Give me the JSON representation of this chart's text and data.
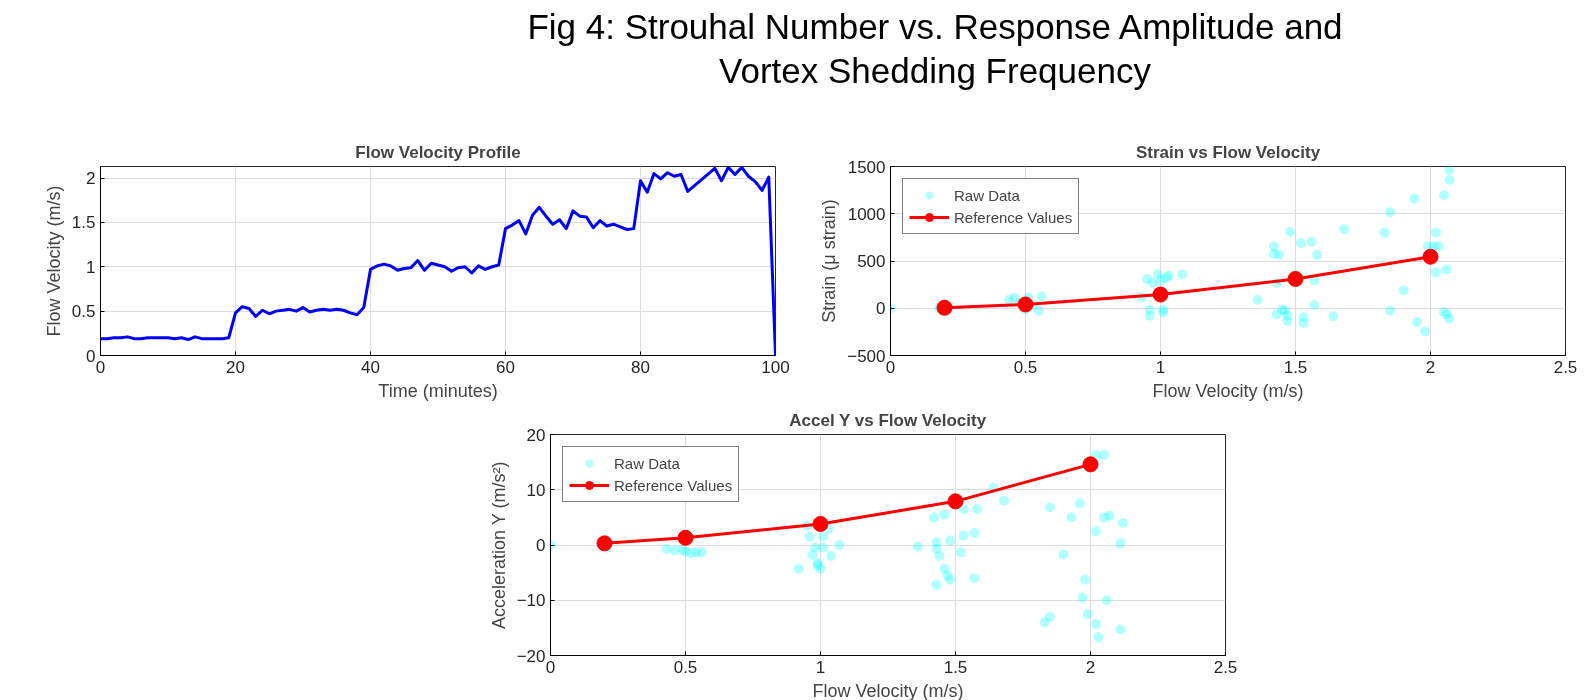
{
  "chart_data": [
    {
      "type": "other",
      "title": "Fig 4: Strouhal Number vs. Response Amplitude and Vortex Shedding Frequency"
    },
    {
      "type": "line",
      "title": "Flow Velocity Profile",
      "xlabel": "Time (minutes)",
      "ylabel": "Flow Velocity (m/s)",
      "xlim": [
        0,
        100
      ],
      "ylim": [
        0,
        2.13
      ],
      "xticks": [
        0,
        20,
        40,
        60,
        80,
        100
      ],
      "yticks": [
        0,
        0.5,
        1,
        1.5,
        2
      ],
      "grid": true,
      "legend": false,
      "line_style": "solid",
      "series": [
        {
          "color": "#0000ff",
          "x": [
            0,
            1,
            2,
            3,
            4,
            5,
            6,
            7,
            8,
            9,
            10,
            11,
            12,
            13,
            14,
            15,
            16,
            17,
            18,
            19,
            20,
            21,
            22,
            23,
            24,
            25,
            26,
            27,
            28,
            29,
            30,
            31,
            32,
            33,
            34,
            35,
            36,
            37,
            38,
            39,
            40,
            41,
            42,
            43,
            44,
            45,
            46,
            47,
            48,
            49,
            50,
            51,
            52,
            53,
            54,
            55,
            56,
            57,
            58,
            59,
            60,
            61,
            62,
            63,
            64,
            65,
            66,
            67,
            68,
            69,
            70,
            71,
            72,
            73,
            74,
            75,
            76,
            77,
            78,
            79,
            80,
            81,
            82,
            83,
            84,
            85,
            86,
            87,
            91,
            92,
            93,
            94,
            95,
            96,
            97,
            98,
            99,
            100
          ],
          "values": [
            0.19,
            0.19,
            0.2,
            0.2,
            0.21,
            0.19,
            0.19,
            0.2,
            0.2,
            0.2,
            0.2,
            0.19,
            0.2,
            0.18,
            0.21,
            0.19,
            0.19,
            0.19,
            0.19,
            0.2,
            0.48,
            0.55,
            0.53,
            0.44,
            0.51,
            0.47,
            0.5,
            0.51,
            0.52,
            0.5,
            0.54,
            0.49,
            0.51,
            0.52,
            0.51,
            0.52,
            0.51,
            0.48,
            0.46,
            0.54,
            0.97,
            1.01,
            1.03,
            1.01,
            0.96,
            0.98,
            0.99,
            1.07,
            0.96,
            1.04,
            1.02,
            1.0,
            0.95,
            0.99,
            1.0,
            0.93,
            1.01,
            0.97,
            1.0,
            1.02,
            1.43,
            1.47,
            1.52,
            1.37,
            1.58,
            1.67,
            1.57,
            1.48,
            1.53,
            1.43,
            1.63,
            1.57,
            1.56,
            1.44,
            1.52,
            1.46,
            1.48,
            1.45,
            1.42,
            1.43,
            1.97,
            1.84,
            2.05,
            1.99,
            2.06,
            2.02,
            2.04,
            1.85,
            2.11,
            1.97,
            2.12,
            2.04,
            2.12,
            2.02,
            1.96,
            1.86,
            2.01,
            0.0
          ]
        }
      ]
    },
    {
      "type": "scatter",
      "title": "Strain vs Flow Velocity",
      "xlabel": "Flow Velocity (m/s)",
      "ylabel": "Strain (μ strain)",
      "xlim": [
        0,
        2.5
      ],
      "ylim": [
        -500,
        1500
      ],
      "xticks": [
        0,
        0.5,
        1,
        1.5,
        2,
        2.5
      ],
      "yticks": [
        -500,
        0,
        500,
        1000,
        1500
      ],
      "grid": true,
      "legend": "top left",
      "series": [
        {
          "name": "Raw Data",
          "type": "scatter",
          "marker": "circle",
          "color": "#00ffff",
          "x": [
            0.0,
            0.18,
            0.44,
            0.46,
            0.48,
            0.5,
            0.51,
            0.53,
            0.55,
            0.56,
            0.95,
            0.96,
            0.96,
            0.97,
            0.99,
            1.0,
            1.01,
            1.02,
            1.03,
            1.01,
            0.93,
            1.08,
            1.36,
            1.42,
            1.42,
            1.44,
            1.43,
            1.43,
            1.45,
            1.46,
            1.47,
            1.48,
            1.47,
            1.52,
            1.53,
            1.53,
            1.56,
            1.57,
            1.57,
            1.58,
            1.64,
            1.68,
            1.83,
            1.85,
            1.85,
            1.9,
            1.94,
            1.95,
            1.98,
            1.99,
            2.01,
            2.02,
            2.02,
            2.03,
            2.05,
            2.05,
            2.06,
            2.07,
            2.06,
            2.07,
            2.07
          ],
          "values": [
            0,
            0,
            90,
            110,
            60,
            -15,
            115,
            35,
            -30,
            125,
            310,
            -15,
            -80,
            270,
            360,
            295,
            -15,
            320,
            345,
            -45,
            115,
            360,
            90,
            655,
            575,
            565,
            270,
            -65,
            -15,
            -25,
            -80,
            810,
            -135,
            690,
            -95,
            -155,
            705,
            295,
            35,
            565,
            -85,
            835,
            800,
            1015,
            -25,
            190,
            1160,
            -145,
            -245,
            655,
            655,
            800,
            380,
            655,
            1195,
            -40,
            -65,
            -110,
            410,
            1360,
            1465
          ]
        },
        {
          "name": "Reference Values",
          "type": "line",
          "marker": "circle",
          "line_style": "solid",
          "color": "#ff0000",
          "x": [
            0.2,
            0.5,
            1,
            1.5,
            2
          ],
          "values": [
            5,
            40,
            145,
            310,
            545
          ]
        }
      ]
    },
    {
      "type": "scatter",
      "title": "Accel Y vs Flow Velocity",
      "xlabel": "Flow Velocity (m/s)",
      "ylabel": "Acceleration Y (m/s²)",
      "xlim": [
        0,
        2.5
      ],
      "ylim": [
        -20,
        20
      ],
      "xticks": [
        0,
        0.5,
        1,
        1.5,
        2,
        2.5
      ],
      "yticks": [
        -20,
        -10,
        0,
        10,
        20
      ],
      "grid": true,
      "legend": "top left",
      "series": [
        {
          "name": "Raw Data",
          "type": "scatter",
          "marker": "circle",
          "color": "#00ffff",
          "x": [
            0.0,
            0.21,
            0.43,
            0.46,
            0.49,
            0.5,
            0.52,
            0.54,
            0.56,
            0.92,
            0.95,
            0.96,
            0.97,
            0.98,
            0.99,
            0.99,
            1.0,
            1.01,
            1.01,
            1.03,
            1.04,
            1.07,
            1.36,
            1.42,
            1.43,
            1.43,
            1.43,
            1.44,
            1.46,
            1.46,
            1.47,
            1.48,
            1.48,
            1.52,
            1.53,
            1.53,
            1.57,
            1.57,
            1.58,
            1.64,
            1.68,
            1.83,
            1.85,
            1.85,
            1.9,
            1.93,
            1.96,
            1.97,
            1.98,
            1.99,
            2.02,
            2.02,
            2.02,
            2.03,
            2.05,
            2.05,
            2.06,
            2.07,
            2.11,
            2.11,
            2.12
          ],
          "values": [
            0,
            -0.5,
            -0.7,
            -1,
            -0.8,
            -1.2,
            -1.5,
            -1.3,
            -1.3,
            -4.3,
            3.5,
            1.5,
            -1.8,
            -0.5,
            -3.3,
            -3.7,
            -4.3,
            1.5,
            -0.5,
            3,
            -2,
            0,
            -0.3,
            5,
            -0.7,
            0.5,
            -7.2,
            -2,
            -4.3,
            5.5,
            -5.5,
            -6.3,
            0.8,
            -1.3,
            6.5,
            1.7,
            2.2,
            -6,
            6.5,
            10.3,
            8,
            -14,
            -13,
            6.8,
            -1.7,
            5,
            7.5,
            -9.5,
            -6.3,
            -12.5,
            -14.3,
            2.5,
            16.3,
            -16.7,
            5,
            16.3,
            -10,
            5.3,
            0.3,
            -15.3,
            4
          ]
        },
        {
          "name": "Reference Values",
          "type": "line",
          "marker": "circle",
          "line_style": "solid",
          "color": "#ff0000",
          "x": [
            0.2,
            0.5,
            1,
            1.5,
            2
          ],
          "values": [
            0.3,
            1.3,
            3.8,
            7.9,
            14.6
          ]
        }
      ]
    }
  ]
}
